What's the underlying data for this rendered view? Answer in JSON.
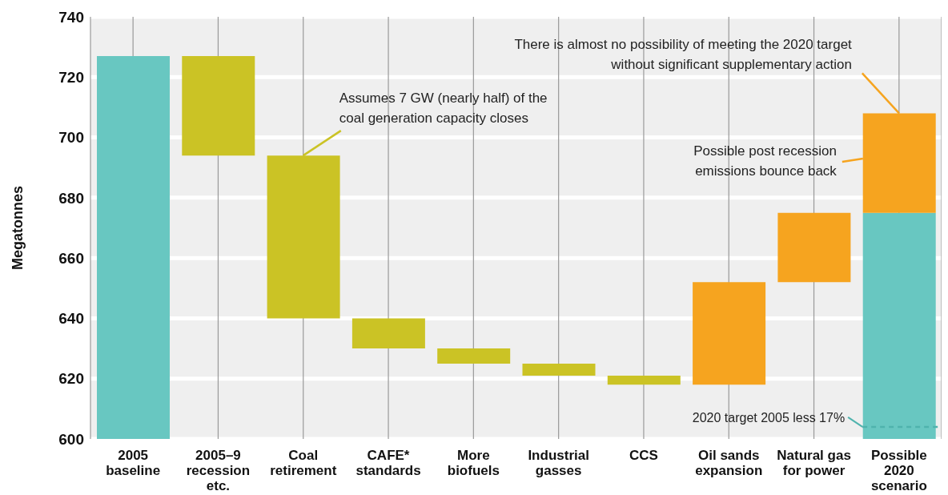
{
  "chart_data": {
    "type": "bar",
    "categories": [
      "2005 baseline",
      "2005–9 recession etc.",
      "Coal retirement",
      "CAFE* standards",
      "More biofuels",
      "Industrial gasses",
      "CCS",
      "Oil sands expansion",
      "Natural gas for power",
      "Possible 2020 scenario"
    ],
    "series": [
      {
        "color": "#68c7c1",
        "base": [
          600,
          null,
          null,
          null,
          null,
          null,
          null,
          null,
          null,
          600
        ],
        "values": [
          127,
          null,
          null,
          null,
          null,
          null,
          null,
          null,
          null,
          75
        ]
      },
      {
        "color": "#cbc325",
        "base": [
          null,
          694,
          640,
          630,
          625,
          621,
          618,
          null,
          null,
          null
        ],
        "values": [
          null,
          33,
          54,
          10,
          5,
          4,
          3,
          null,
          null,
          null
        ]
      },
      {
        "color": "#f6a41f",
        "base": [
          null,
          null,
          null,
          null,
          null,
          null,
          null,
          618,
          652,
          675
        ],
        "values": [
          null,
          null,
          null,
          null,
          null,
          null,
          null,
          34,
          23,
          33
        ]
      }
    ],
    "ylabel": "Megatonnes",
    "ylim": [
      600,
      740
    ],
    "yticks": [
      600,
      620,
      640,
      660,
      680,
      700,
      720,
      740
    ],
    "grid": true,
    "ref_lines": [
      {
        "axis": "y",
        "value": 604,
        "label": "2020 target 2005 less 17%",
        "color": "#4fb3ad",
        "line_style": "dashed"
      }
    ],
    "annotations": [
      {
        "text": "Assumes 7 GW (nearly half) of the\ncoal generation capacity closes",
        "x": "Coal retirement",
        "y": 694
      },
      {
        "text": "There is almost no possibility of meeting the 2020 target\nwithout significant supplementary action",
        "x": "Possible 2020 scenario",
        "y": 708
      },
      "Possible post recession\nemissions bounce back"
    ]
  }
}
